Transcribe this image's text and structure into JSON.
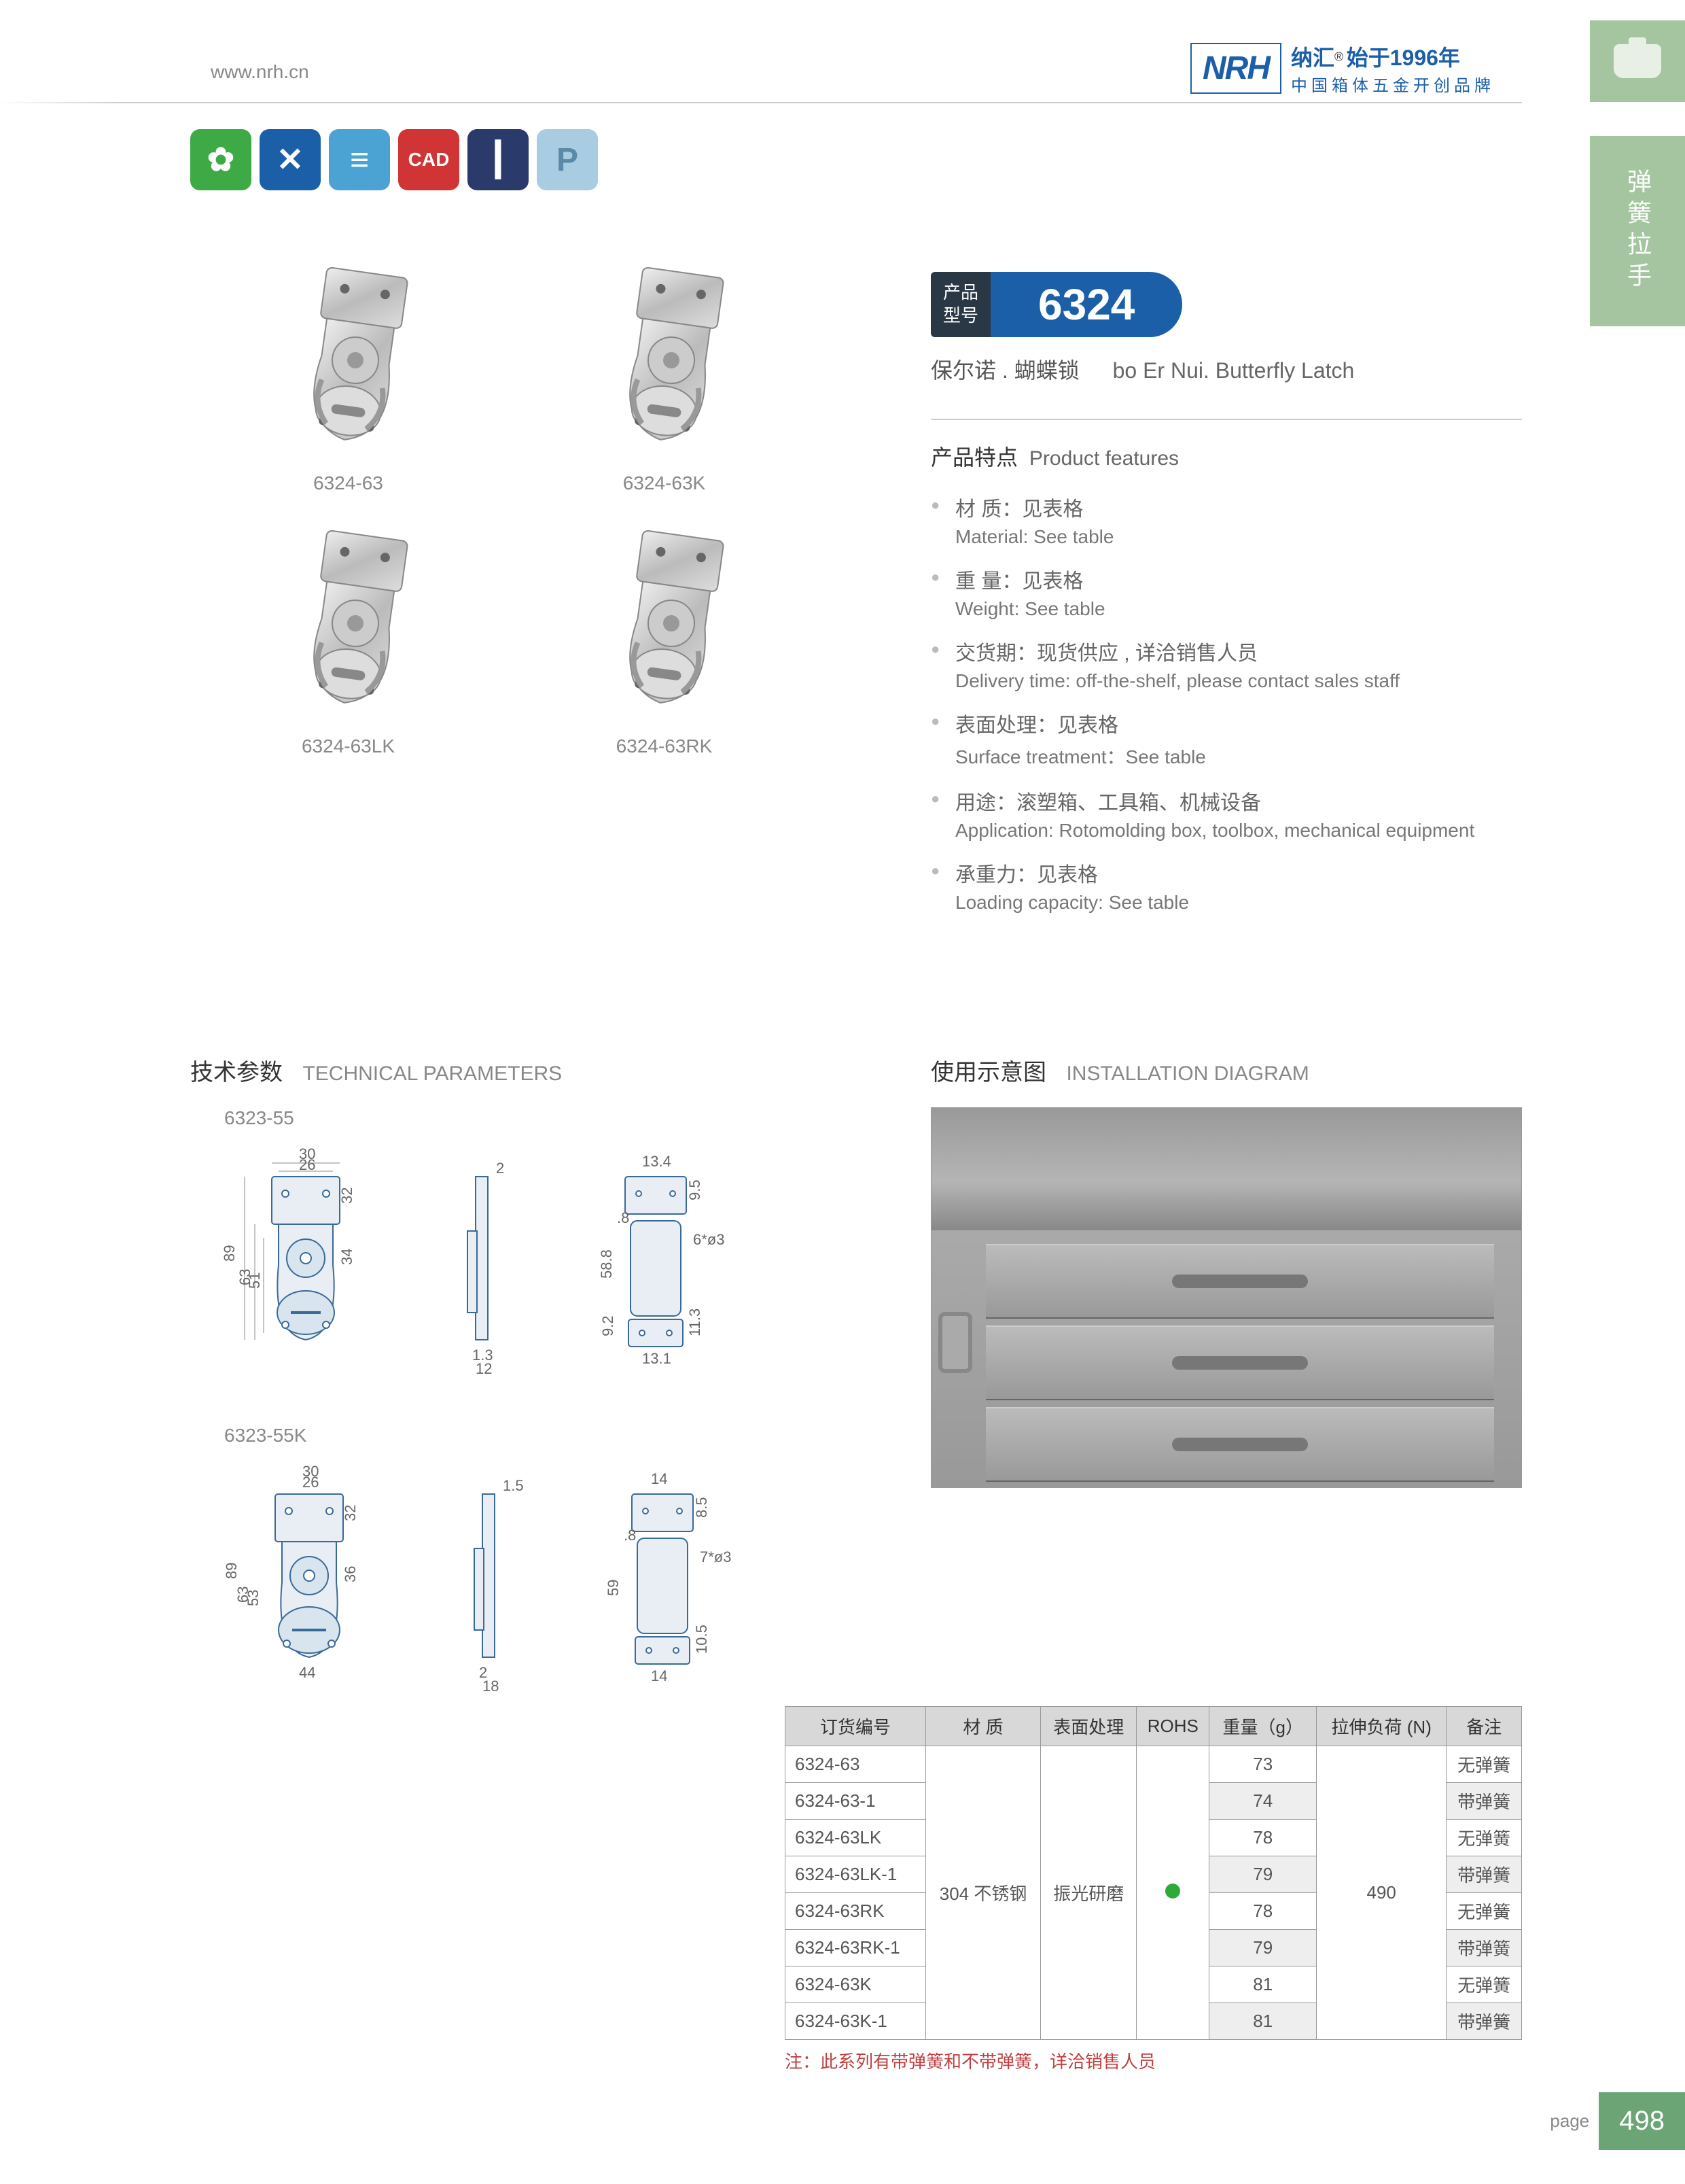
{
  "header": {
    "url": "www.nrh.cn",
    "logo": "NRH",
    "logo_cn": "纳汇",
    "logo_since": "始于1996年",
    "logo_sub": "中国箱体五金开创品牌",
    "reg": "®"
  },
  "side": {
    "label": "弹簧拉手"
  },
  "icons": {
    "cad": "CAD",
    "p": "P"
  },
  "products": [
    {
      "id": "6324-63"
    },
    {
      "id": "6324-63K"
    },
    {
      "id": "6324-63LK"
    },
    {
      "id": "6324-63RK"
    }
  ],
  "model": {
    "label1": "产品",
    "label2": "型号",
    "number": "6324",
    "sub_cn": "保尔诺 . 蝴蝶锁",
    "sub_en": "bo Er Nui. Butterfly Latch"
  },
  "features": {
    "title_cn": "产品特点",
    "title_en": "Product features",
    "items": [
      {
        "cn": "材  质：见表格",
        "en": "Material: See table"
      },
      {
        "cn": "重  量：见表格",
        "en": "Weight: See table"
      },
      {
        "cn": "交货期：现货供应 , 详洽销售人员",
        "en": "Delivery time: off-the-shelf, please contact sales staff"
      },
      {
        "cn": "表面处理：见表格",
        "en": "Surface treatment：See table"
      },
      {
        "cn": "用途：滚塑箱、工具箱、机械设备",
        "en": "Application: Rotomolding box, toolbox, mechanical equipment"
      },
      {
        "cn": "承重力：见表格",
        "en": "Loading capacity: See table"
      }
    ]
  },
  "tech": {
    "title_cn": "技术参数",
    "title_en": "TECHNICAL PARAMETERS",
    "d1_label": "6323-55",
    "d2_label": "6323-55K",
    "d1": {
      "w_top": "30",
      "w_in": "26",
      "t": "2",
      "h_top": "32",
      "h_total": "89",
      "h_body": "63",
      "h_inner": "51",
      "h_mid": "34",
      "bt": "1.3",
      "bw": "12",
      "w2_top": "13.4",
      "h2_top": "9.5",
      "gap": ".8",
      "hole2": "6*ø3",
      "h2_body": "58.8",
      "h2_bot": "11.3",
      "h2_g": "9.2",
      "w2_bot": "13.1"
    },
    "d2": {
      "w_top": "30",
      "w_in": "26",
      "t": "1.5",
      "h_top": "32",
      "h_total": "89",
      "h_body": "63",
      "h_inner": "53",
      "h_mid": "36",
      "w_bot": "44",
      "bt": "2",
      "bw": "18",
      "w2_top": "14",
      "h2_top": "8.5",
      "gap": ".8",
      "hole2": "7*ø3",
      "h2_body": "59",
      "h2_bot": "10.5",
      "w2_bot": "14"
    }
  },
  "install": {
    "title_cn": "使用示意图",
    "title_en": "INSTALLATION DIAGRAM"
  },
  "table": {
    "headers": [
      "订货编号",
      "材   质",
      "表面处理",
      "ROHS",
      "重量（g）",
      "拉伸负荷 (N)",
      "备注"
    ],
    "material": "304 不锈钢",
    "surface": "振光研磨",
    "load": "490",
    "rows": [
      {
        "code": "6324-63",
        "weight": "73",
        "remark": "无弹簧",
        "alt": false
      },
      {
        "code": "6324-63-1",
        "weight": "74",
        "remark": "带弹簧",
        "alt": true
      },
      {
        "code": "6324-63LK",
        "weight": "78",
        "remark": "无弹簧",
        "alt": false
      },
      {
        "code": "6324-63LK-1",
        "weight": "79",
        "remark": "带弹簧",
        "alt": true
      },
      {
        "code": "6324-63RK",
        "weight": "78",
        "remark": "无弹簧",
        "alt": false
      },
      {
        "code": "6324-63RK-1",
        "weight": "79",
        "remark": "带弹簧",
        "alt": true
      },
      {
        "code": "6324-63K",
        "weight": "81",
        "remark": "无弹簧",
        "alt": false
      },
      {
        "code": "6324-63K-1",
        "weight": "81",
        "remark": "带弹簧",
        "alt": true
      }
    ],
    "note": "注：此系列有带弹簧和不带弹簧，详洽销售人员"
  },
  "footer": {
    "label": "page",
    "num": "498"
  }
}
